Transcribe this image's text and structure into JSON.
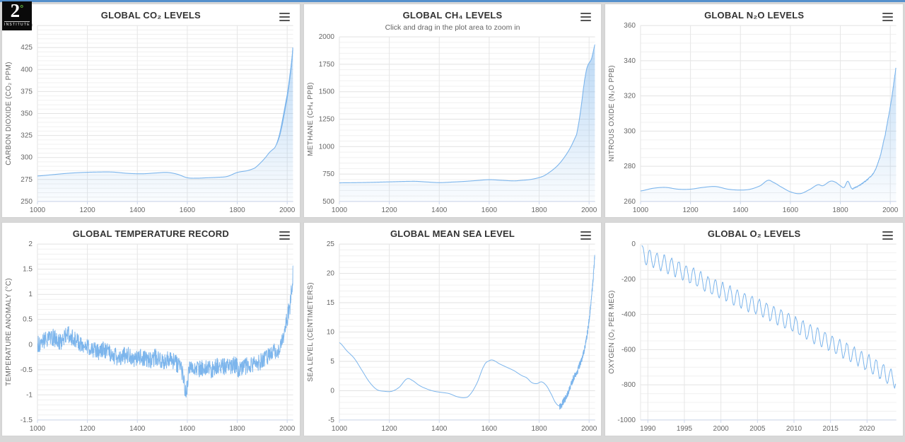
{
  "page": {
    "logo": {
      "number": "2",
      "degree": "°",
      "caption": "INSTITUTE"
    },
    "accent_color": "#5590cc",
    "background_color": "#d8d8d8",
    "series_color": "#7cb5ec",
    "icons": {
      "chart_menu": "hamburger-menu-icon"
    }
  },
  "chart_data": [
    {
      "type": "area",
      "title": "GLOBAL CO₂ LEVELS",
      "subtitle": "",
      "y_title": "CARBON DIOXIDE (CO₂ PPM)",
      "x_min": 1000,
      "x_max": 2024,
      "x_tick_start": 1000,
      "x_tick_end": 2000,
      "x_tick_step": 200,
      "y_min": 250,
      "y_max": 450,
      "y_tick_step": 25,
      "y_minor_div": 5,
      "sample_step": 0.25,
      "noise": 0,
      "noise_start": 0,
      "seasonal_start": 1955,
      "seasonal_amp": 2.5,
      "seasonal_ramp": 25,
      "anchors": [
        [
          1000,
          279
        ],
        [
          1060,
          280.5
        ],
        [
          1120,
          282
        ],
        [
          1180,
          283
        ],
        [
          1240,
          283.5
        ],
        [
          1300,
          283.5
        ],
        [
          1360,
          282
        ],
        [
          1420,
          281.5
        ],
        [
          1480,
          282.5
        ],
        [
          1520,
          283
        ],
        [
          1560,
          281
        ],
        [
          1600,
          277
        ],
        [
          1640,
          276.5
        ],
        [
          1680,
          277
        ],
        [
          1720,
          277.5
        ],
        [
          1760,
          278.5
        ],
        [
          1800,
          283
        ],
        [
          1840,
          285
        ],
        [
          1870,
          288
        ],
        [
          1890,
          293
        ],
        [
          1910,
          299
        ],
        [
          1930,
          306
        ],
        [
          1950,
          311
        ],
        [
          1960,
          317
        ],
        [
          1970,
          326
        ],
        [
          1980,
          339
        ],
        [
          1990,
          354
        ],
        [
          2000,
          369
        ],
        [
          2005,
          379
        ],
        [
          2010,
          390
        ],
        [
          2015,
          401
        ],
        [
          2020,
          414
        ],
        [
          2023,
          424
        ]
      ]
    },
    {
      "type": "area",
      "title": "GLOBAL CH₄ LEVELS",
      "subtitle": "Click and drag in the plot area to zoom in",
      "y_title": "METHANE (CH₄ PPB)",
      "x_min": 1000,
      "x_max": 2024,
      "x_tick_start": 1000,
      "x_tick_end": 2000,
      "x_tick_step": 200,
      "y_min": 500,
      "y_max": 2000,
      "y_tick_step": 250,
      "y_minor_div": 5,
      "sample_step": 1,
      "noise": 0,
      "noise_start": 0,
      "seasonal_start": 0,
      "seasonal_amp": 0,
      "seasonal_ramp": 0,
      "anchors": [
        [
          1000,
          670
        ],
        [
          1100,
          673
        ],
        [
          1200,
          679
        ],
        [
          1300,
          684
        ],
        [
          1350,
          678
        ],
        [
          1400,
          672
        ],
        [
          1450,
          677
        ],
        [
          1500,
          683
        ],
        [
          1550,
          691
        ],
        [
          1600,
          699
        ],
        [
          1650,
          693
        ],
        [
          1700,
          688
        ],
        [
          1730,
          693
        ],
        [
          1760,
          699
        ],
        [
          1790,
          712
        ],
        [
          1820,
          735
        ],
        [
          1850,
          780
        ],
        [
          1875,
          830
        ],
        [
          1900,
          900
        ],
        [
          1925,
          990
        ],
        [
          1950,
          1110
        ],
        [
          1960,
          1235
        ],
        [
          1970,
          1395
        ],
        [
          1980,
          1570
        ],
        [
          1985,
          1645
        ],
        [
          1990,
          1705
        ],
        [
          1995,
          1740
        ],
        [
          2000,
          1762
        ],
        [
          2005,
          1778
        ],
        [
          2010,
          1803
        ],
        [
          2015,
          1848
        ],
        [
          2020,
          1898
        ],
        [
          2023,
          1928
        ]
      ]
    },
    {
      "type": "area",
      "title": "GLOBAL N₂O LEVELS",
      "subtitle": "",
      "y_title": "NITROUS OXIDE (N₂O PPB)",
      "x_min": 1000,
      "x_max": 2024,
      "x_tick_start": 1000,
      "x_tick_end": 2000,
      "x_tick_step": 200,
      "y_min": 260,
      "y_max": 360,
      "y_tick_step": 20,
      "y_minor_div": 4,
      "sample_step": 1,
      "noise": 0.3,
      "noise_start": 1848,
      "seasonal_start": 0,
      "seasonal_amp": 0,
      "seasonal_ramp": 0,
      "anchors": [
        [
          1000,
          266
        ],
        [
          1050,
          267.5
        ],
        [
          1100,
          268
        ],
        [
          1150,
          267
        ],
        [
          1200,
          267
        ],
        [
          1250,
          268
        ],
        [
          1300,
          268.5
        ],
        [
          1350,
          267
        ],
        [
          1400,
          266.5
        ],
        [
          1440,
          267
        ],
        [
          1480,
          269
        ],
        [
          1510,
          272
        ],
        [
          1530,
          271
        ],
        [
          1560,
          268.5
        ],
        [
          1600,
          265.5
        ],
        [
          1640,
          264.5
        ],
        [
          1680,
          267
        ],
        [
          1710,
          269.5
        ],
        [
          1730,
          269
        ],
        [
          1760,
          271.5
        ],
        [
          1780,
          271
        ],
        [
          1800,
          269
        ],
        [
          1815,
          268
        ],
        [
          1830,
          271.5
        ],
        [
          1845,
          267.5
        ],
        [
          1860,
          268
        ],
        [
          1880,
          269.5
        ],
        [
          1900,
          271.5
        ],
        [
          1920,
          274
        ],
        [
          1940,
          278
        ],
        [
          1960,
          286
        ],
        [
          1980,
          298
        ],
        [
          1990,
          306
        ],
        [
          2000,
          314
        ],
        [
          2010,
          323
        ],
        [
          2020,
          333
        ],
        [
          2023,
          336
        ]
      ]
    },
    {
      "type": "line",
      "title": "GLOBAL TEMPERATURE RECORD",
      "subtitle": "",
      "y_title": "TEMPERATURE ANOMALY (°C)",
      "x_min": 1000,
      "x_max": 2024,
      "x_tick_start": 1000,
      "x_tick_end": 2000,
      "x_tick_step": 200,
      "y_min": -1.5,
      "y_max": 2,
      "y_tick_step": 0.5,
      "y_minor_div": 5,
      "sample_step": 1,
      "noise": 0.17,
      "noise_start": 1000,
      "seasonal_start": 0,
      "seasonal_amp": 0,
      "seasonal_ramp": 0,
      "anchors": [
        [
          1000,
          0.0
        ],
        [
          1030,
          0.1
        ],
        [
          1060,
          0.15
        ],
        [
          1090,
          0.05
        ],
        [
          1120,
          0.2
        ],
        [
          1150,
          0.1
        ],
        [
          1180,
          -0.05
        ],
        [
          1210,
          -0.05
        ],
        [
          1240,
          -0.15
        ],
        [
          1270,
          -0.1
        ],
        [
          1300,
          -0.2
        ],
        [
          1330,
          -0.25
        ],
        [
          1360,
          -0.2
        ],
        [
          1390,
          -0.3
        ],
        [
          1420,
          -0.25
        ],
        [
          1450,
          -0.3
        ],
        [
          1480,
          -0.25
        ],
        [
          1500,
          -0.35
        ],
        [
          1530,
          -0.3
        ],
        [
          1560,
          -0.4
        ],
        [
          1580,
          -0.55
        ],
        [
          1595,
          -0.95
        ],
        [
          1610,
          -0.45
        ],
        [
          1640,
          -0.5
        ],
        [
          1670,
          -0.45
        ],
        [
          1700,
          -0.5
        ],
        [
          1730,
          -0.4
        ],
        [
          1760,
          -0.45
        ],
        [
          1790,
          -0.4
        ],
        [
          1810,
          -0.5
        ],
        [
          1830,
          -0.45
        ],
        [
          1850,
          -0.4
        ],
        [
          1870,
          -0.4
        ],
        [
          1890,
          -0.35
        ],
        [
          1910,
          -0.3
        ],
        [
          1930,
          -0.2
        ],
        [
          1945,
          -0.1
        ],
        [
          1955,
          -0.15
        ],
        [
          1965,
          -0.1
        ],
        [
          1975,
          0.0
        ],
        [
          1985,
          0.2
        ],
        [
          1995,
          0.4
        ],
        [
          2000,
          0.5
        ],
        [
          2005,
          0.65
        ],
        [
          2010,
          0.75
        ],
        [
          2014,
          0.85
        ],
        [
          2016,
          1.1
        ],
        [
          2018,
          1.05
        ],
        [
          2020,
          1.2
        ],
        [
          2022,
          1.3
        ],
        [
          2023,
          1.5
        ]
      ]
    },
    {
      "type": "line",
      "title": "GLOBAL MEAN SEA LEVEL",
      "subtitle": "",
      "y_title": "SEA LEVEL (CENTIMETERS)",
      "x_min": 1000,
      "x_max": 2024,
      "x_tick_start": 1000,
      "x_tick_end": 2000,
      "x_tick_step": 200,
      "y_min": -5,
      "y_max": 25,
      "y_tick_step": 5,
      "y_minor_div": 5,
      "sample_step": 0.5,
      "noise": 0.55,
      "noise_start": 1882,
      "seasonal_start": 0,
      "seasonal_amp": 0,
      "seasonal_ramp": 0,
      "anchors": [
        [
          1000,
          8.2
        ],
        [
          1030,
          6.8
        ],
        [
          1060,
          5.5
        ],
        [
          1090,
          3.5
        ],
        [
          1120,
          1.5
        ],
        [
          1150,
          0.2
        ],
        [
          1180,
          -0.1
        ],
        [
          1210,
          -0.1
        ],
        [
          1240,
          0.6
        ],
        [
          1270,
          2.0
        ],
        [
          1290,
          1.8
        ],
        [
          1320,
          0.9
        ],
        [
          1350,
          0.3
        ],
        [
          1380,
          -0.1
        ],
        [
          1410,
          -0.3
        ],
        [
          1440,
          -0.5
        ],
        [
          1470,
          -1.0
        ],
        [
          1500,
          -1.2
        ],
        [
          1520,
          -0.8
        ],
        [
          1550,
          1.2
        ],
        [
          1580,
          4.3
        ],
        [
          1600,
          5.1
        ],
        [
          1615,
          5.2
        ],
        [
          1640,
          4.6
        ],
        [
          1670,
          4.0
        ],
        [
          1700,
          3.4
        ],
        [
          1730,
          2.6
        ],
        [
          1750,
          2.2
        ],
        [
          1770,
          1.4
        ],
        [
          1790,
          1.2
        ],
        [
          1810,
          1.5
        ],
        [
          1830,
          0.8
        ],
        [
          1850,
          -0.7
        ],
        [
          1865,
          -2.0
        ],
        [
          1880,
          -2.6
        ],
        [
          1890,
          -2.4
        ],
        [
          1900,
          -1.6
        ],
        [
          1910,
          -1.0
        ],
        [
          1920,
          0.2
        ],
        [
          1930,
          1.2
        ],
        [
          1940,
          2.4
        ],
        [
          1950,
          3.0
        ],
        [
          1960,
          4.2
        ],
        [
          1970,
          5.2
        ],
        [
          1980,
          6.8
        ],
        [
          1990,
          9.0
        ],
        [
          2000,
          12.0
        ],
        [
          2005,
          14.0
        ],
        [
          2010,
          16.2
        ],
        [
          2015,
          18.5
        ],
        [
          2020,
          21.3
        ],
        [
          2023,
          23.2
        ]
      ]
    },
    {
      "type": "line",
      "title": "GLOBAL O₂ LEVELS",
      "subtitle": "",
      "y_title": "OXYGEN (O₂ PER MEG)",
      "x_min": 1989,
      "x_max": 2024,
      "x_tick_start": 1990,
      "x_tick_end": 2020,
      "x_tick_step": 5,
      "y_min": -1000,
      "y_max": 0,
      "y_tick_step": 200,
      "y_minor_div": 4,
      "sample_step": 0.0833,
      "noise": 6,
      "noise_start": 1989,
      "seasonal_start": 1989,
      "seasonal_amp": 47,
      "seasonal_ramp": 0,
      "anchors": [
        [
          1989.2,
          -55
        ],
        [
          1990,
          -75
        ],
        [
          1991,
          -92
        ],
        [
          1992,
          -108
        ],
        [
          1993,
          -122
        ],
        [
          1994,
          -140
        ],
        [
          1995,
          -160
        ],
        [
          1996,
          -180
        ],
        [
          1997,
          -202
        ],
        [
          1998,
          -226
        ],
        [
          1999,
          -246
        ],
        [
          2000,
          -262
        ],
        [
          2001,
          -282
        ],
        [
          2002,
          -302
        ],
        [
          2003,
          -322
        ],
        [
          2004,
          -340
        ],
        [
          2005,
          -356
        ],
        [
          2006,
          -376
        ],
        [
          2007,
          -396
        ],
        [
          2008,
          -416
        ],
        [
          2009,
          -436
        ],
        [
          2010,
          -456
        ],
        [
          2011,
          -477
        ],
        [
          2012,
          -500
        ],
        [
          2013,
          -521
        ],
        [
          2014,
          -541
        ],
        [
          2015,
          -562
        ],
        [
          2016,
          -586
        ],
        [
          2017,
          -606
        ],
        [
          2018,
          -627
        ],
        [
          2019,
          -651
        ],
        [
          2020,
          -672
        ],
        [
          2021,
          -698
        ],
        [
          2022,
          -724
        ],
        [
          2023,
          -752
        ],
        [
          2023.9,
          -770
        ]
      ]
    }
  ]
}
